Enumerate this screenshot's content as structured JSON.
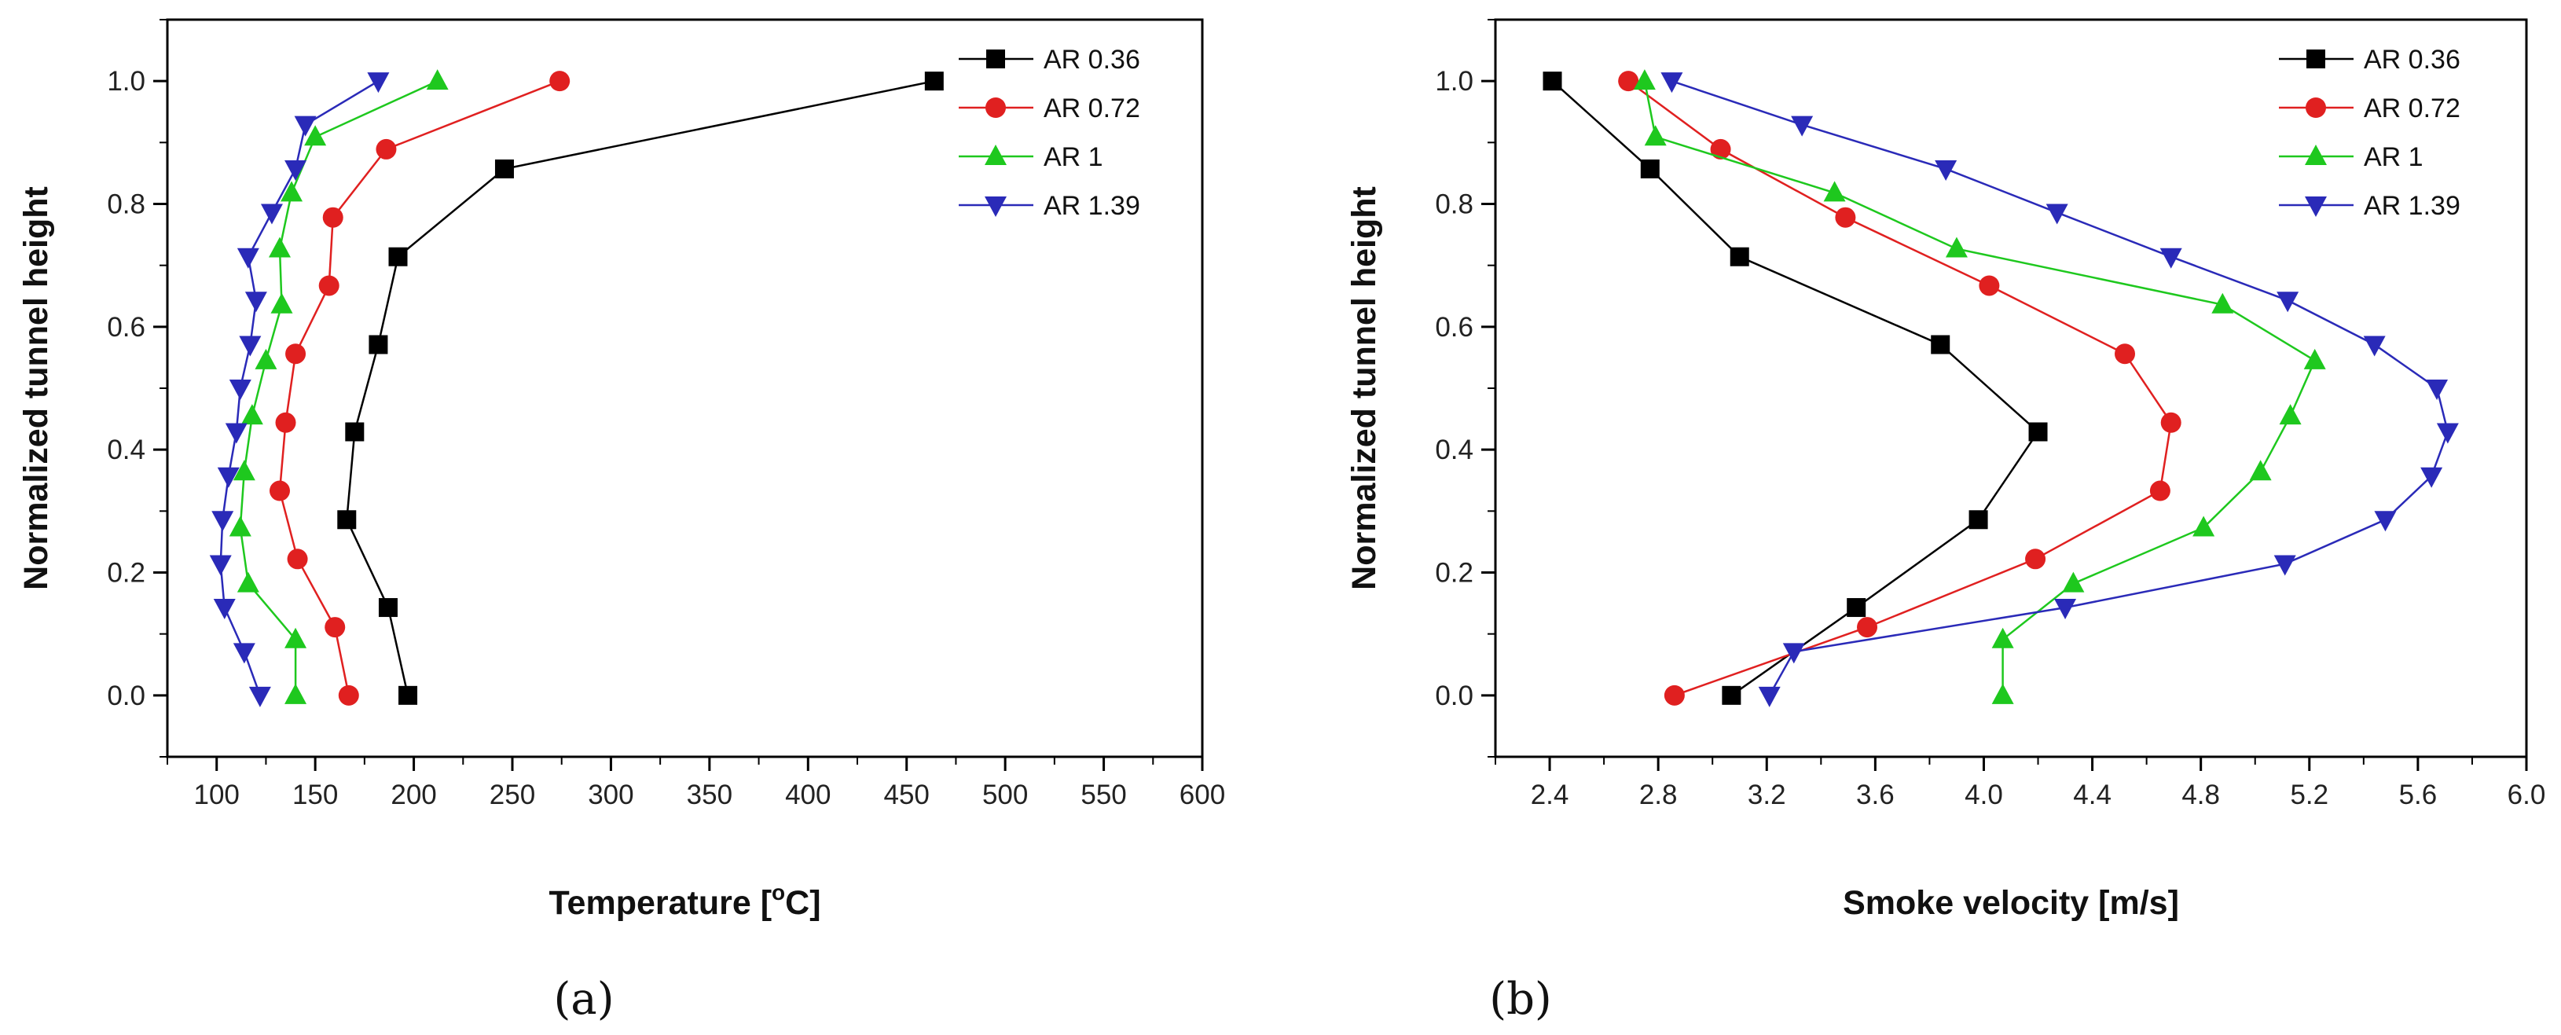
{
  "chart_data": [
    {
      "type": "line",
      "panel_label": "(a)",
      "xlabel": "Temperature [",
      "xlabel_degree": "o",
      "xlabel_unit": "C]",
      "ylabel": "Normalized tunnel height",
      "xlim": [
        75,
        600
      ],
      "ylim": [
        -0.1,
        1.1
      ],
      "xticks": [
        100,
        150,
        200,
        250,
        300,
        350,
        400,
        450,
        500,
        550,
        600
      ],
      "yticks": [
        0.0,
        0.2,
        0.4,
        0.6,
        0.8,
        1.0
      ],
      "legend_position": "top-right",
      "series": [
        {
          "name": "AR 0.36",
          "color": "#000000",
          "marker": "square",
          "points": [
            [
              197,
              0.0
            ],
            [
              187,
              0.143
            ],
            [
              166,
              0.286
            ],
            [
              170,
              0.429
            ],
            [
              182,
              0.571
            ],
            [
              192,
              0.714
            ],
            [
              246,
              0.857
            ],
            [
              464,
              1.0
            ]
          ]
        },
        {
          "name": "AR 0.72",
          "color": "#e02020",
          "marker": "circle",
          "points": [
            [
              167,
              0.0
            ],
            [
              160,
              0.111
            ],
            [
              141,
              0.222
            ],
            [
              132,
              0.333
            ],
            [
              135,
              0.444
            ],
            [
              140,
              0.556
            ],
            [
              157,
              0.667
            ],
            [
              159,
              0.778
            ],
            [
              186,
              0.889
            ],
            [
              274,
              1.0
            ]
          ]
        },
        {
          "name": "AR 1",
          "color": "#1ec81e",
          "marker": "triangle-up",
          "points": [
            [
              140,
              0.0
            ],
            [
              140,
              0.091
            ],
            [
              116,
              0.182
            ],
            [
              112,
              0.273
            ],
            [
              114,
              0.364
            ],
            [
              118,
              0.455
            ],
            [
              125,
              0.545
            ],
            [
              133,
              0.636
            ],
            [
              132,
              0.727
            ],
            [
              138,
              0.818
            ],
            [
              150,
              0.909
            ],
            [
              212,
              1.0
            ]
          ]
        },
        {
          "name": "AR 1.39",
          "color": "#2a2ab8",
          "marker": "triangle-down",
          "points": [
            [
              122,
              0.0
            ],
            [
              114,
              0.071
            ],
            [
              104,
              0.143
            ],
            [
              102,
              0.214
            ],
            [
              103,
              0.286
            ],
            [
              106,
              0.357
            ],
            [
              110,
              0.429
            ],
            [
              112,
              0.5
            ],
            [
              117,
              0.571
            ],
            [
              120,
              0.643
            ],
            [
              116,
              0.714
            ],
            [
              128,
              0.786
            ],
            [
              140,
              0.857
            ],
            [
              145,
              0.929
            ],
            [
              182,
              1.0
            ]
          ]
        }
      ]
    },
    {
      "type": "line",
      "panel_label": "(b)",
      "xlabel": "Smoke velocity [m/s]",
      "ylabel": "Normalized tunnel height",
      "xlim": [
        2.2,
        6.0
      ],
      "ylim": [
        -0.1,
        1.1
      ],
      "xticks": [
        "2.4",
        "2.8",
        "3.2",
        "3.6",
        "4.0",
        "4.4",
        "4.8",
        "5.2",
        "5.6",
        "6.0"
      ],
      "yticks": [
        0.0,
        0.2,
        0.4,
        0.6,
        0.8,
        1.0
      ],
      "legend_position": "top-right",
      "series": [
        {
          "name": "AR 0.36",
          "color": "#000000",
          "marker": "square",
          "points": [
            [
              3.07,
              0.0
            ],
            [
              3.53,
              0.143
            ],
            [
              3.98,
              0.286
            ],
            [
              4.2,
              0.429
            ],
            [
              3.84,
              0.571
            ],
            [
              3.1,
              0.714
            ],
            [
              2.77,
              0.857
            ],
            [
              2.41,
              1.0
            ]
          ]
        },
        {
          "name": "AR 0.72",
          "color": "#e02020",
          "marker": "circle",
          "points": [
            [
              2.86,
              0.0
            ],
            [
              3.57,
              0.111
            ],
            [
              4.19,
              0.222
            ],
            [
              4.65,
              0.333
            ],
            [
              4.69,
              0.444
            ],
            [
              4.52,
              0.556
            ],
            [
              4.02,
              0.667
            ],
            [
              3.49,
              0.778
            ],
            [
              3.03,
              0.889
            ],
            [
              2.69,
              1.0
            ]
          ]
        },
        {
          "name": "AR 1",
          "color": "#1ec81e",
          "marker": "triangle-up",
          "points": [
            [
              4.07,
              0.0
            ],
            [
              4.07,
              0.091
            ],
            [
              4.33,
              0.182
            ],
            [
              4.81,
              0.273
            ],
            [
              5.02,
              0.364
            ],
            [
              5.13,
              0.455
            ],
            [
              5.22,
              0.545
            ],
            [
              4.88,
              0.636
            ],
            [
              3.9,
              0.727
            ],
            [
              3.45,
              0.818
            ],
            [
              2.79,
              0.909
            ],
            [
              2.75,
              1.0
            ]
          ]
        },
        {
          "name": "AR 1.39",
          "color": "#2a2ab8",
          "marker": "triangle-down",
          "points": [
            [
              3.21,
              0.0
            ],
            [
              3.3,
              0.071
            ],
            [
              4.3,
              0.143
            ],
            [
              5.11,
              0.214
            ],
            [
              5.48,
              0.286
            ],
            [
              5.65,
              0.357
            ],
            [
              5.71,
              0.429
            ],
            [
              5.67,
              0.5
            ],
            [
              5.44,
              0.571
            ],
            [
              5.12,
              0.643
            ],
            [
              4.69,
              0.714
            ],
            [
              4.27,
              0.786
            ],
            [
              3.86,
              0.857
            ],
            [
              3.33,
              0.929
            ],
            [
              2.85,
              1.0
            ]
          ]
        }
      ]
    }
  ]
}
